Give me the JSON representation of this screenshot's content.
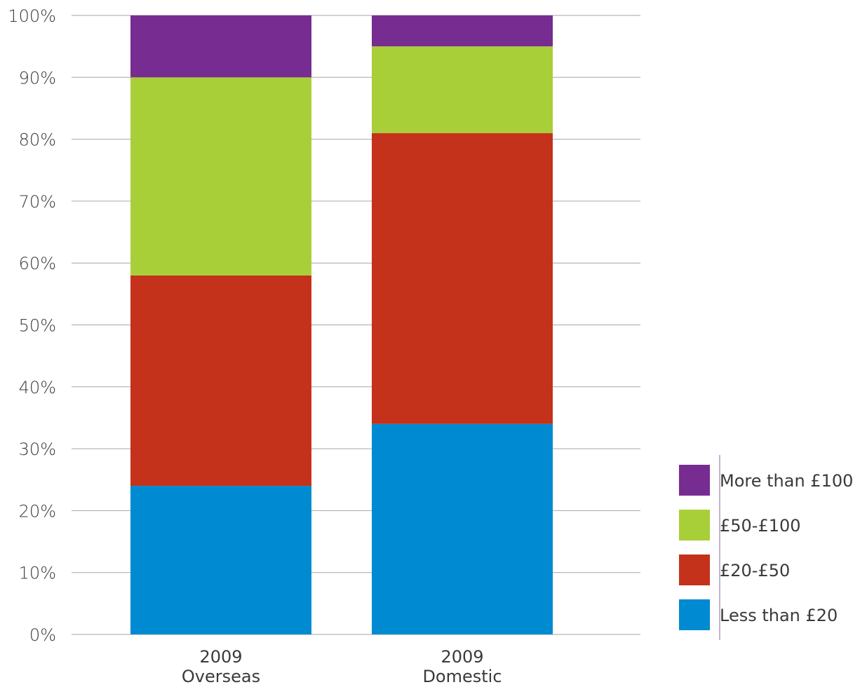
{
  "chart_data": {
    "type": "bar",
    "stacked": true,
    "title": "",
    "xlabel": "",
    "ylabel": "",
    "ylim": [
      0,
      100
    ],
    "y_ticks": [
      0,
      10,
      20,
      30,
      40,
      50,
      60,
      70,
      80,
      90,
      100
    ],
    "y_tick_labels": [
      "0%",
      "10%",
      "20%",
      "30%",
      "40%",
      "50%",
      "60%",
      "70%",
      "80%",
      "90%",
      "100%"
    ],
    "grid": true,
    "legend_position": "bottom-right",
    "categories": [
      [
        "2009",
        "Overseas"
      ],
      [
        "2009",
        "Domestic"
      ]
    ],
    "series": [
      {
        "name": "Less than £20",
        "color": "#008ad2",
        "values": [
          24,
          34
        ]
      },
      {
        "name": "£20-£50",
        "color": "#c4321b",
        "values": [
          34,
          47
        ]
      },
      {
        "name": "£50-£100",
        "color": "#a8cf38",
        "values": [
          32,
          14
        ]
      },
      {
        "name": "More than £100",
        "color": "#772c91",
        "values": [
          10,
          5
        ]
      }
    ]
  }
}
